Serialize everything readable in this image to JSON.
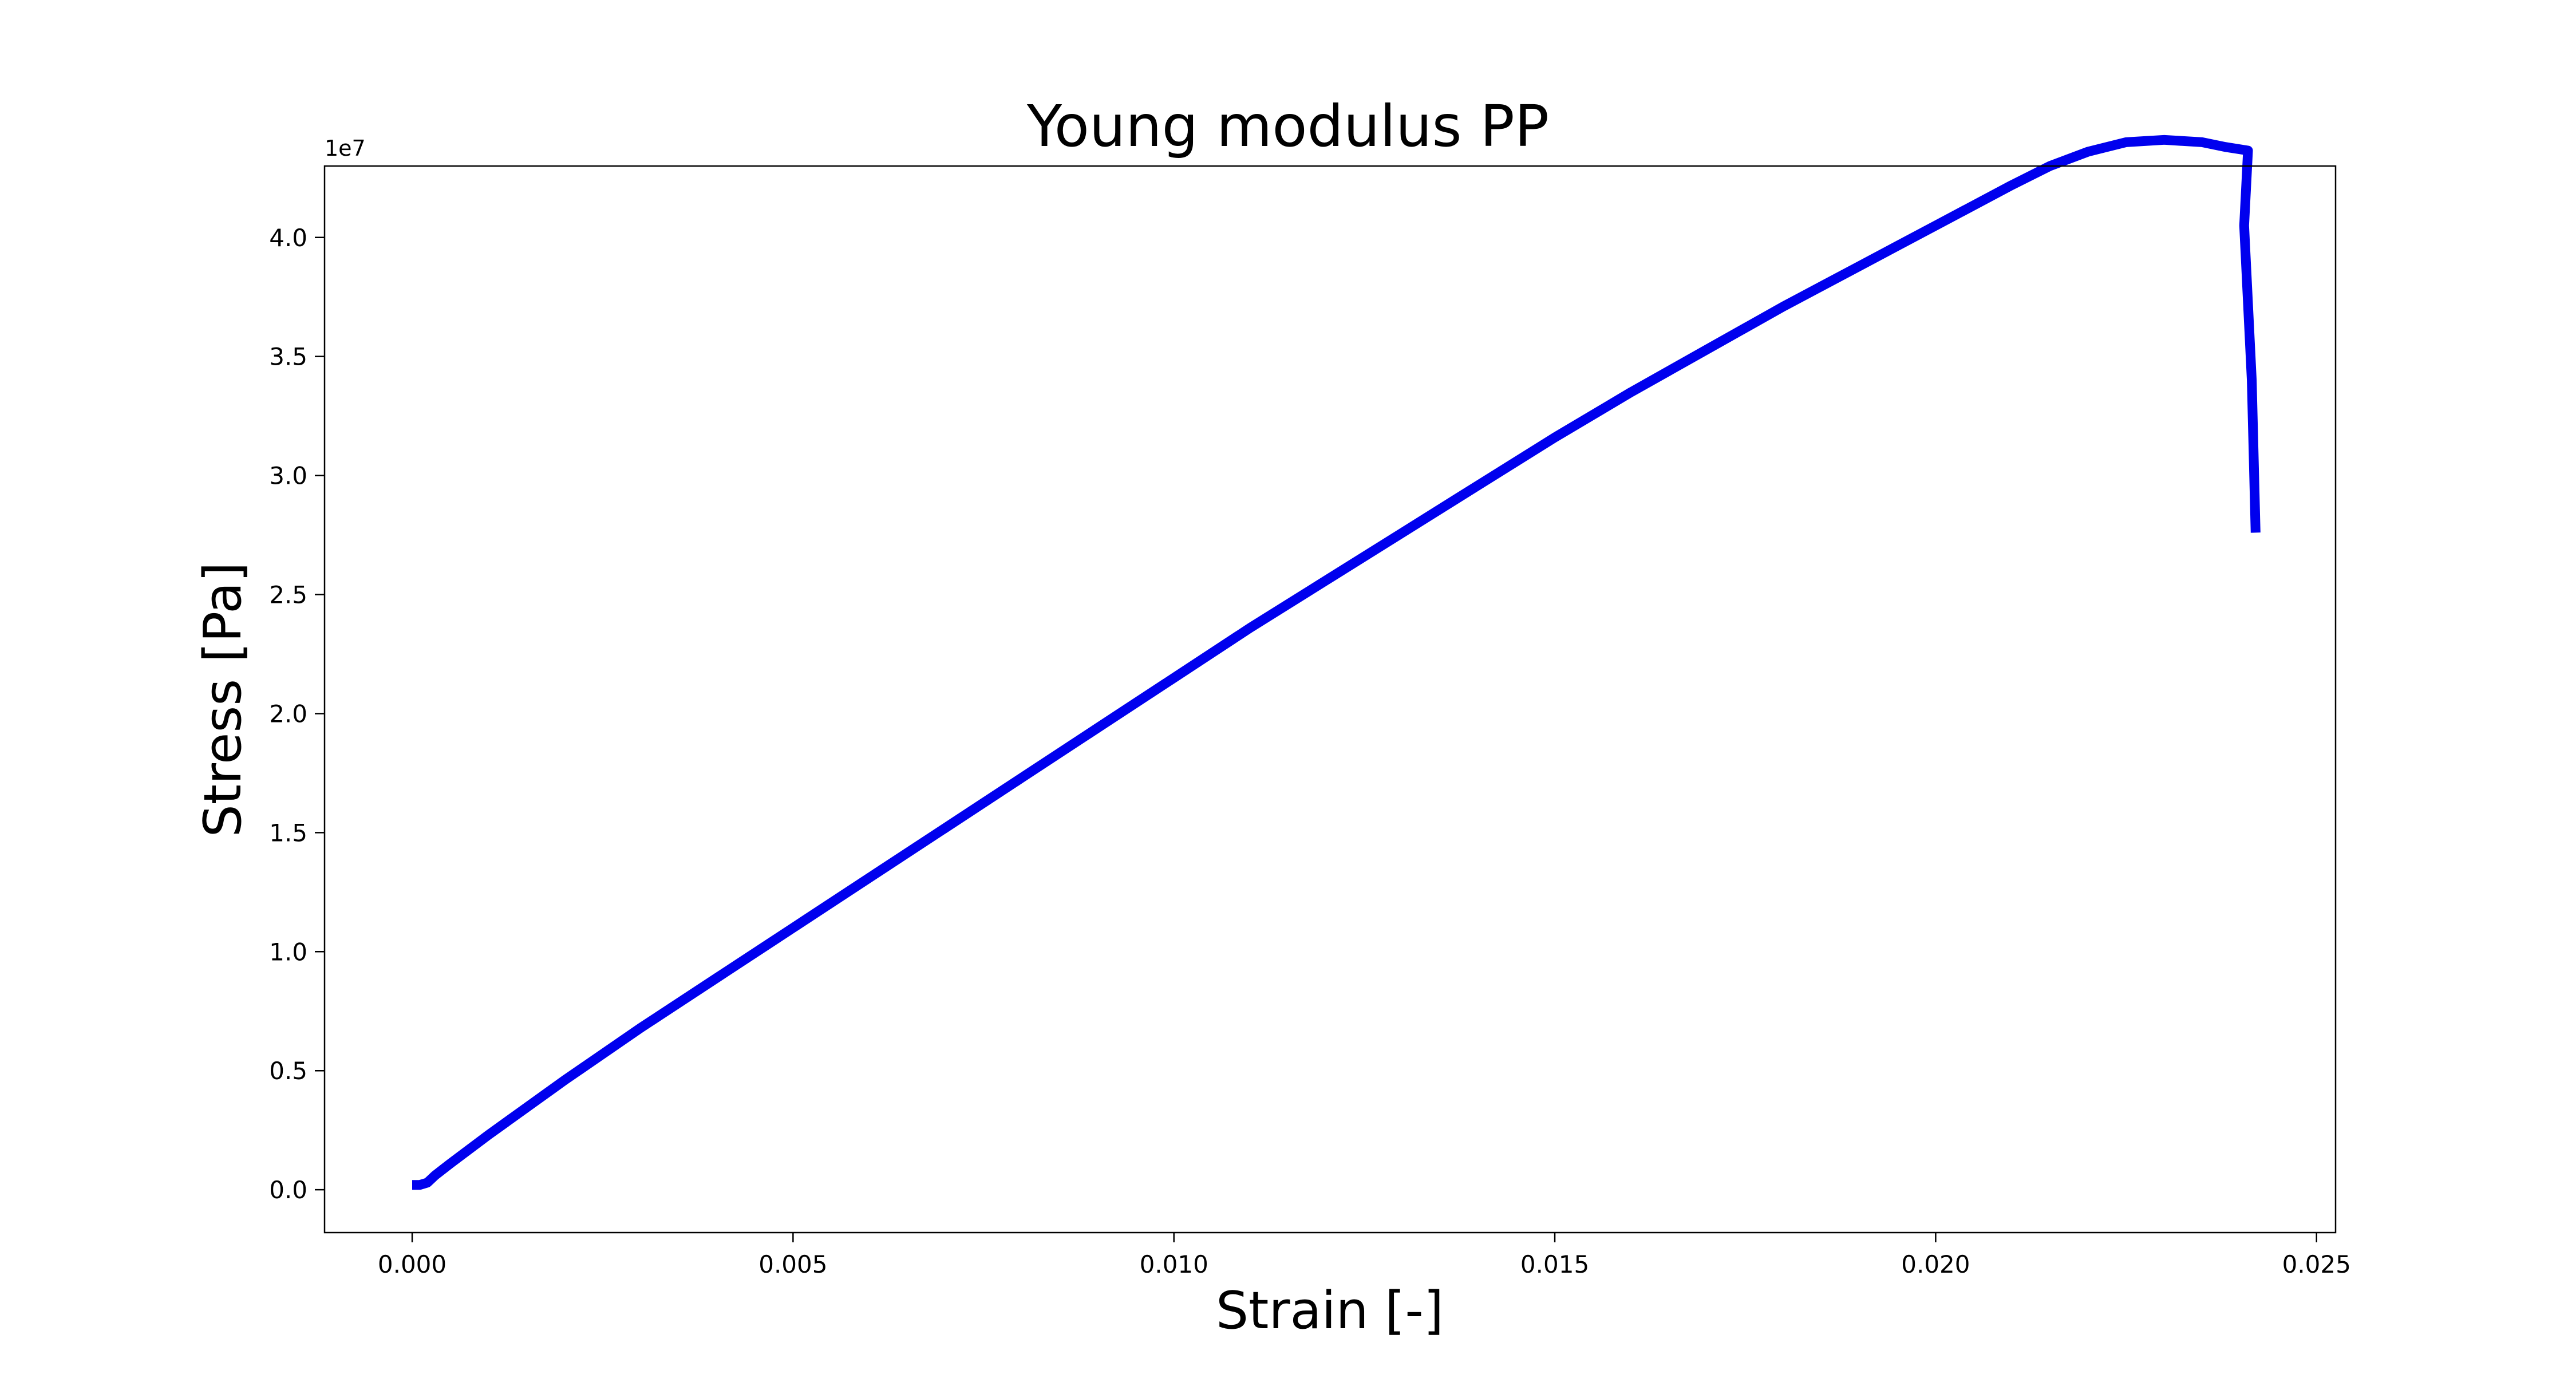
{
  "chart_data": {
    "type": "line",
    "title": "Young modulus PP",
    "xlabel": "Strain [-]",
    "ylabel": "Stress [Pa]",
    "y_offset_label": "1e7",
    "y_scale": 10000000,
    "xlim": [
      -0.00115,
      0.02525
    ],
    "ylim": [
      -1800000,
      43000000
    ],
    "x_ticks": [
      0.0,
      0.005,
      0.01,
      0.015,
      0.02,
      0.025
    ],
    "x_tick_labels": [
      "0.000",
      "0.005",
      "0.010",
      "0.015",
      "0.020",
      "0.025"
    ],
    "y_ticks": [
      0,
      5000000,
      10000000,
      15000000,
      20000000,
      25000000,
      30000000,
      35000000,
      40000000
    ],
    "y_tick_labels": [
      "0.0",
      "0.5",
      "1.0",
      "1.5",
      "2.0",
      "2.5",
      "3.0",
      "3.5",
      "4.0"
    ],
    "grid": false,
    "series": [
      {
        "color": "#0000ee",
        "x": [
          0.0,
          0.0001,
          0.0002,
          0.0003,
          0.0005,
          0.001,
          0.002,
          0.003,
          0.004,
          0.005,
          0.006,
          0.007,
          0.008,
          0.009,
          0.01,
          0.011,
          0.012,
          0.013,
          0.014,
          0.015,
          0.016,
          0.017,
          0.018,
          0.019,
          0.02,
          0.021,
          0.0215,
          0.022,
          0.0225,
          0.023,
          0.0235,
          0.0238,
          0.024,
          0.0241,
          0.02405,
          0.02415,
          0.0242
        ],
        "y": [
          200000,
          200000,
          300000,
          600000,
          1100000,
          2300000,
          4600000,
          6800000,
          8900000,
          11000000,
          13100000,
          15200000,
          17300000,
          19400000,
          21500000,
          23600000,
          25600000,
          27600000,
          29600000,
          31600000,
          33500000,
          35300000,
          37100000,
          38800000,
          40500000,
          42200000,
          43000000,
          43600000,
          44000000,
          44100000,
          44000000,
          43800000,
          43700000,
          43650000,
          40500000,
          34000000,
          27600000
        ]
      }
    ]
  }
}
